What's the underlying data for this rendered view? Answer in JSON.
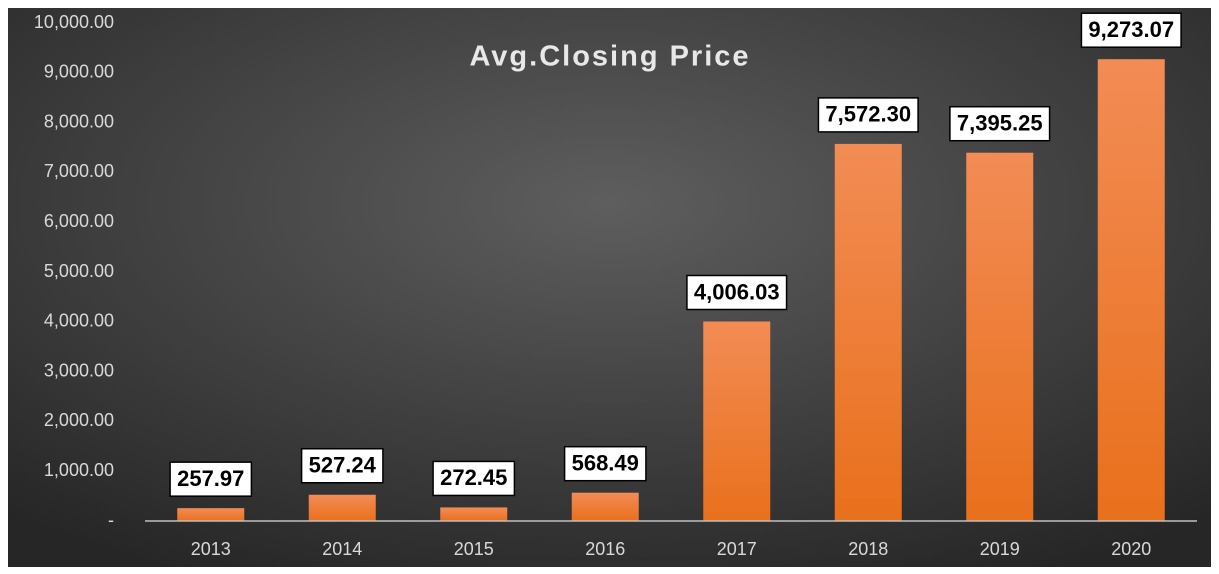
{
  "chart_data": {
    "type": "bar",
    "title": "Avg.Closing Price",
    "categories": [
      "2013",
      "2014",
      "2015",
      "2016",
      "2017",
      "2018",
      "2019",
      "2020"
    ],
    "values": [
      257.97,
      527.24,
      272.45,
      568.49,
      4006.03,
      7572.3,
      7395.25,
      9273.07
    ],
    "value_labels": [
      "257.97",
      "527.24",
      "272.45",
      "568.49",
      "4,006.03",
      "7,572.30",
      "7,395.25",
      "9,273.07"
    ],
    "color": "#f07a2a",
    "ylim": [
      0,
      10000
    ],
    "yticks": [
      {
        "value": 0,
        "label": "-"
      },
      {
        "value": 1000,
        "label": "1,000.00"
      },
      {
        "value": 2000,
        "label": "2,000.00"
      },
      {
        "value": 3000,
        "label": "3,000.00"
      },
      {
        "value": 4000,
        "label": "4,000.00"
      },
      {
        "value": 5000,
        "label": "5,000.00"
      },
      {
        "value": 6000,
        "label": "6,000.00"
      },
      {
        "value": 7000,
        "label": "7,000.00"
      },
      {
        "value": 8000,
        "label": "8,000.00"
      },
      {
        "value": 9000,
        "label": "9,000.00"
      },
      {
        "value": 10000,
        "label": "10,000.00"
      }
    ]
  }
}
